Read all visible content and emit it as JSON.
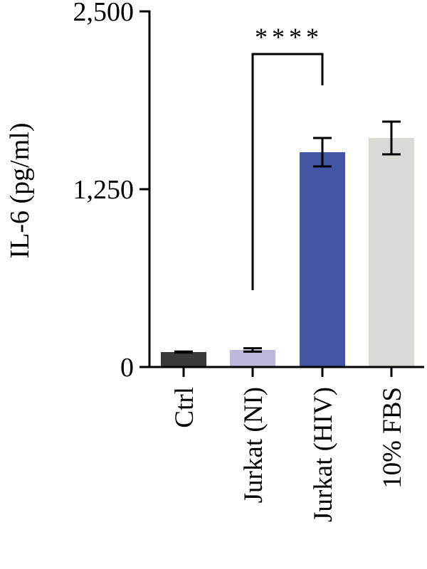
{
  "chart_data": {
    "type": "bar",
    "title": "",
    "xlabel": "",
    "ylabel": "IL-6 (pg/ml)",
    "ylim": [
      0,
      2500
    ],
    "yticks": [
      0,
      1250,
      2500
    ],
    "ytick_labels": [
      "0",
      "1,250",
      "2,500"
    ],
    "categories": [
      "Ctrl",
      "Jurkat (NI)",
      "Jurkat (HIV)",
      "10% FBS"
    ],
    "values": [
      105,
      120,
      1510,
      1610
    ],
    "errors": [
      4,
      12,
      100,
      115
    ],
    "colors": [
      "#3a3a3a",
      "#bdb8dc",
      "#4356a3",
      "#d9d9d6"
    ],
    "significance": [
      {
        "from": "Jurkat (NI)",
        "to": "Jurkat (HIV)",
        "label": "****"
      }
    ],
    "grid": false,
    "legend": "none"
  }
}
